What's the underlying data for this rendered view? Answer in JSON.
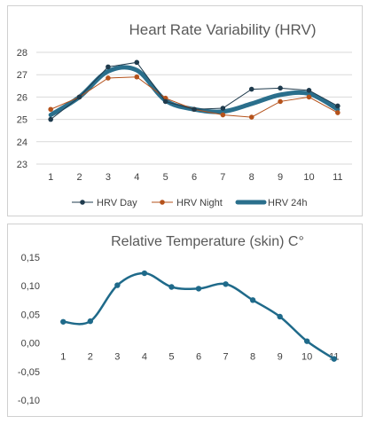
{
  "colors": {
    "hrv_day": "#1f3b4d",
    "hrv_night": "#b5521b",
    "hrv_24h": "#2a6f8c",
    "temp": "#1f6a8a",
    "grid": "#d9d9d9"
  },
  "chart_data": [
    {
      "type": "line",
      "title": "Heart Rate Variability (HRV)",
      "x": [
        1,
        2,
        3,
        4,
        5,
        6,
        7,
        8,
        9,
        10,
        11
      ],
      "ylim": [
        23,
        28
      ],
      "yticks": [
        23,
        24,
        25,
        26,
        27,
        28
      ],
      "grid": true,
      "legend_position": "bottom",
      "series": [
        {
          "name": "HRV Day",
          "style": "straight-markers",
          "values": [
            25.0,
            26.0,
            27.35,
            27.55,
            25.8,
            25.45,
            25.5,
            26.35,
            26.4,
            26.3,
            25.6
          ]
        },
        {
          "name": "HRV Night",
          "style": "straight-markers",
          "values": [
            25.45,
            26.0,
            26.85,
            26.9,
            25.95,
            25.45,
            25.2,
            25.1,
            25.8,
            26.0,
            25.3
          ]
        },
        {
          "name": "HRV 24h",
          "style": "smooth-thick",
          "values": [
            25.2,
            26.0,
            27.15,
            27.2,
            25.85,
            25.45,
            25.35,
            25.7,
            26.1,
            26.15,
            25.45
          ]
        }
      ]
    },
    {
      "type": "line",
      "title": "Relative Temperature (skin) C°",
      "x": [
        1,
        2,
        3,
        4,
        5,
        6,
        7,
        8,
        9,
        10,
        11
      ],
      "ylim": [
        -0.1,
        0.15
      ],
      "yticks": [
        -0.1,
        -0.05,
        0.0,
        0.05,
        0.1,
        0.15
      ],
      "ytick_labels": [
        "-0,10",
        "-0,05",
        "0,00",
        "0,05",
        "0,10",
        "0,15"
      ],
      "grid": false,
      "series": [
        {
          "style": "smooth-markers",
          "values": [
            0.037,
            0.038,
            0.101,
            0.122,
            0.098,
            0.095,
            0.103,
            0.075,
            0.046,
            0.003,
            -0.028
          ]
        }
      ]
    }
  ]
}
